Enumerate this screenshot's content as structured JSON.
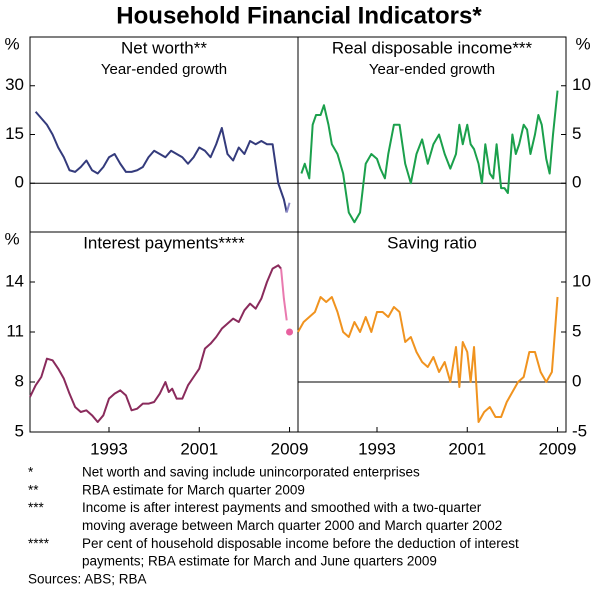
{
  "title": "Household Financial Indicators*",
  "chart_data": [
    {
      "type": "line",
      "title": "Net worth**",
      "subtitle": "Year-ended growth",
      "unit": "%",
      "axis_side": "left",
      "xlim": [
        1986,
        2009.75
      ],
      "ylim": [
        -15,
        45
      ],
      "yticks": [
        0,
        15,
        30
      ],
      "series": [
        {
          "color": "#343b7c",
          "x": [
            1986.5,
            1987.5,
            1988,
            1988.5,
            1989,
            1989.5,
            1990,
            1990.5,
            1991,
            1991.5,
            1992,
            1992.5,
            1993,
            1993.5,
            1994,
            1994.5,
            1995,
            1995.5,
            1996,
            1996.5,
            1997,
            1997.5,
            1998,
            1998.5,
            1999,
            1999.5,
            2000,
            2000.5,
            2001,
            2001.5,
            2002,
            2002.5,
            2003,
            2003.5,
            2004,
            2004.5,
            2005,
            2005.5,
            2006,
            2006.5,
            2007,
            2007.5,
            2008,
            2008.5,
            2008.75
          ],
          "values": [
            22,
            18,
            15,
            11,
            8,
            4,
            3.5,
            5,
            7,
            4,
            3,
            5,
            8,
            9,
            6,
            3.5,
            3.5,
            4,
            5,
            8,
            10,
            9,
            8,
            10,
            9,
            8,
            6,
            8,
            11,
            10,
            8,
            12,
            17,
            9,
            7,
            11,
            9,
            13,
            12,
            13,
            12,
            12,
            0,
            -5,
            -9
          ]
        },
        {
          "color": "#8d8ac9",
          "x": [
            2008.75,
            2009
          ],
          "values": [
            -9,
            -6
          ]
        }
      ]
    },
    {
      "type": "line",
      "title": "Real disposable income***",
      "subtitle": "Year-ended growth",
      "unit": "%",
      "axis_side": "right",
      "xlim": [
        1986,
        2009.75
      ],
      "ylim": [
        -5,
        15
      ],
      "yticks": [
        0,
        5,
        10
      ],
      "series": [
        {
          "color": "#1ba04c",
          "x": [
            1986.3,
            1986.6,
            1987,
            1987.3,
            1987.6,
            1988,
            1988.3,
            1988.7,
            1989,
            1989.5,
            1990,
            1990.5,
            1991,
            1991.5,
            1992,
            1992.5,
            1993,
            1993.3,
            1993.7,
            1994,
            1994.5,
            1995,
            1995.5,
            1996,
            1996.5,
            1997,
            1997.5,
            1998,
            1998.5,
            1999,
            1999.5,
            2000,
            2000.3,
            2000.6,
            2001,
            2001.3,
            2001.6,
            2002,
            2002.3,
            2002.6,
            2003,
            2003.3,
            2003.6,
            2004,
            2004.3,
            2004.6,
            2005,
            2005.3,
            2005.6,
            2006,
            2006.3,
            2006.6,
            2007,
            2007.3,
            2007.6,
            2008,
            2008.3,
            2008.6,
            2009
          ],
          "values": [
            1,
            2,
            0.5,
            6,
            7,
            7,
            8,
            6,
            4,
            3,
            1,
            -3,
            -4,
            -3,
            2,
            3,
            2.5,
            1.5,
            0.5,
            3,
            6,
            6,
            2,
            0,
            3,
            4.5,
            2,
            4,
            5,
            3,
            1.5,
            3,
            6,
            4,
            6,
            4,
            3.5,
            2,
            0,
            4,
            1,
            0.5,
            4,
            -0.5,
            -0.5,
            -1,
            5,
            3,
            4,
            6,
            5.5,
            3,
            5,
            7,
            6,
            2.5,
            1,
            5,
            9.5
          ]
        }
      ]
    },
    {
      "type": "line",
      "title": "Interest payments****",
      "unit": "%",
      "axis_side": "left",
      "xlim": [
        1986,
        2009.75
      ],
      "ylim": [
        5,
        17
      ],
      "yticks": [
        5,
        8,
        11,
        14
      ],
      "xticks": [
        1993,
        2001,
        2009
      ],
      "series": [
        {
          "color": "#8a2b5c",
          "x": [
            1986,
            1986.5,
            1987,
            1987.5,
            1988,
            1988.5,
            1989,
            1989.5,
            1990,
            1990.5,
            1991,
            1991.5,
            1992,
            1992.5,
            1993,
            1993.5,
            1994,
            1994.5,
            1995,
            1995.5,
            1996,
            1996.5,
            1997,
            1997.5,
            1998,
            1998.3,
            1998.6,
            1999,
            1999.5,
            2000,
            2000.5,
            2001,
            2001.5,
            2002,
            2002.5,
            2003,
            2003.5,
            2004,
            2004.5,
            2005,
            2005.5,
            2006,
            2006.5,
            2007,
            2007.5,
            2008,
            2008.25
          ],
          "values": [
            7.1,
            7.8,
            8.3,
            9.4,
            9.3,
            8.8,
            8.2,
            7.3,
            6.5,
            6.2,
            6.3,
            6.0,
            5.6,
            6.0,
            7.0,
            7.3,
            7.5,
            7.2,
            6.3,
            6.4,
            6.7,
            6.7,
            6.8,
            7.3,
            8.0,
            7.4,
            7.6,
            7.0,
            7.0,
            7.8,
            8.3,
            8.8,
            10.0,
            10.3,
            10.7,
            11.2,
            11.5,
            11.8,
            11.6,
            12.3,
            12.7,
            12.4,
            13.0,
            14.0,
            14.8,
            15.0,
            14.8
          ]
        },
        {
          "color": "#e97aaf",
          "x": [
            2008.25,
            2008.5,
            2008.75
          ],
          "values": [
            14.8,
            13.0,
            11.7
          ]
        },
        {
          "color": "#e8609f",
          "style": "marker",
          "x": [
            2009
          ],
          "values": [
            11.0
          ]
        }
      ]
    },
    {
      "type": "line",
      "title": "Saving ratio",
      "axis_side": "right",
      "xlim": [
        1986,
        2009.75
      ],
      "ylim": [
        -5,
        15
      ],
      "yticks": [
        -5,
        0,
        5,
        10
      ],
      "xticks": [
        1993,
        2001,
        2009
      ],
      "series": [
        {
          "color": "#f0931f",
          "x": [
            1986,
            1986.5,
            1987,
            1987.5,
            1988,
            1988.5,
            1989,
            1989.5,
            1990,
            1990.5,
            1991,
            1991.5,
            1992,
            1992.5,
            1993,
            1993.5,
            1994,
            1994.5,
            1995,
            1995.5,
            1996,
            1996.5,
            1997,
            1997.5,
            1998,
            1998.5,
            1999,
            1999.5,
            2000,
            2000.3,
            2000.6,
            2001,
            2001.3,
            2001.6,
            2002,
            2002.5,
            2003,
            2003.5,
            2004,
            2004.5,
            2005,
            2005.5,
            2006,
            2006.5,
            2007,
            2007.5,
            2008,
            2008.5,
            2009
          ],
          "values": [
            5,
            6,
            6.5,
            7,
            8.5,
            8,
            8.5,
            7,
            5,
            4.5,
            6,
            5,
            6.5,
            5,
            7,
            7,
            6.5,
            7.5,
            7,
            4,
            4.5,
            3,
            2,
            1.5,
            2.5,
            1,
            2,
            0,
            3.5,
            -0.5,
            4,
            3,
            0,
            3.5,
            -4,
            -3,
            -2.5,
            -3.5,
            -3.5,
            -2,
            -1,
            0,
            0.5,
            3,
            3,
            1,
            0,
            1,
            8.5
          ]
        }
      ]
    }
  ],
  "footnotes": [
    {
      "marker": "*",
      "lines": [
        "Net worth and saving include unincorporated enterprises"
      ]
    },
    {
      "marker": "**",
      "lines": [
        "RBA estimate for March quarter 2009"
      ]
    },
    {
      "marker": "***",
      "lines": [
        "Income is after interest payments and smoothed with a two-quarter",
        "moving average between March quarter 2000 and March quarter 2002"
      ]
    },
    {
      "marker": "****",
      "lines": [
        "Per cent of household disposable income before the deduction of interest",
        "payments; RBA estimate for March and June quarters 2009"
      ]
    }
  ],
  "sources": "Sources: ABS; RBA"
}
